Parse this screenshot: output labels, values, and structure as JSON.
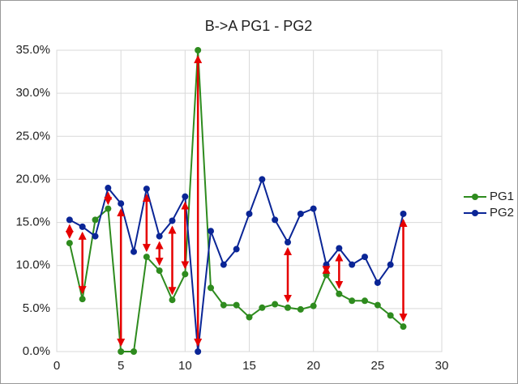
{
  "chart_data": {
    "type": "line",
    "title": "B->A PG1 - PG2",
    "x": [
      1,
      2,
      3,
      4,
      5,
      6,
      7,
      8,
      9,
      10,
      11,
      12,
      13,
      14,
      15,
      16,
      17,
      18,
      19,
      20,
      21,
      22,
      23,
      24,
      25,
      26,
      27
    ],
    "series": [
      {
        "name": "PG1",
        "color": "#2e8b1e",
        "values": [
          12.6,
          6.1,
          15.3,
          16.6,
          0,
          0,
          11.0,
          9.4,
          6.0,
          9.0,
          35.0,
          7.4,
          5.4,
          5.4,
          4.0,
          5.1,
          5.5,
          5.1,
          4.9,
          5.3,
          8.9,
          6.7,
          5.9,
          5.9,
          5.4,
          4.2,
          2.9
        ]
      },
      {
        "name": "PG2",
        "color": "#0a2596",
        "values": [
          15.3,
          14.5,
          13.4,
          19.0,
          17.2,
          11.6,
          18.9,
          13.4,
          15.2,
          18.0,
          0,
          14.0,
          10.1,
          11.9,
          16.0,
          20.0,
          15.3,
          12.7,
          16.0,
          16.6,
          10.1,
          12.0,
          10.1,
          11.0,
          8.0,
          10.1,
          16.0
        ]
      }
    ],
    "arrows": {
      "color": "#e60000",
      "x": [
        1,
        2,
        4,
        5,
        7,
        8,
        9,
        10,
        11,
        18,
        21,
        22,
        27
      ]
    },
    "xlim": [
      0,
      30
    ],
    "xticks": [
      0,
      5,
      10,
      15,
      20,
      25,
      30
    ],
    "ylim": [
      0,
      35
    ],
    "yticks": [
      {
        "value": 0,
        "label": "0.0%"
      },
      {
        "value": 5,
        "label": "5.0%"
      },
      {
        "value": 10,
        "label": "10.0%"
      },
      {
        "value": 15,
        "label": "15.0%"
      },
      {
        "value": 20,
        "label": "20.0%"
      },
      {
        "value": 25,
        "label": "25.0%"
      },
      {
        "value": 30,
        "label": "30.0%"
      },
      {
        "value": 35,
        "label": "35.0%"
      }
    ],
    "grid": true,
    "legend": "right"
  }
}
